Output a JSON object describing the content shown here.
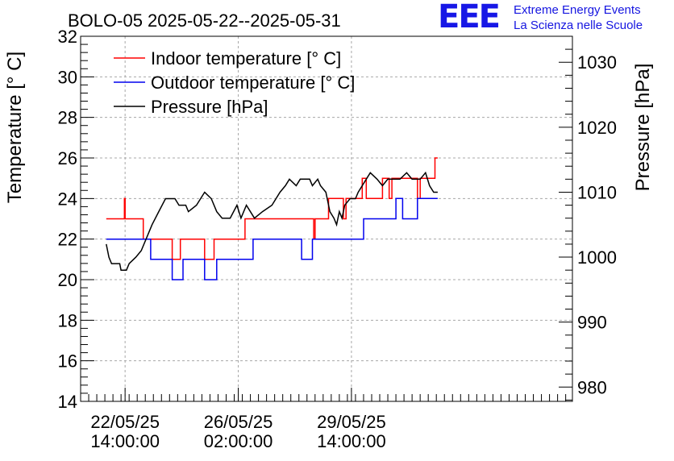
{
  "header": {
    "logo_text": "EEE",
    "org_line1": "Extreme Energy Events",
    "org_line2": "La Scienza nelle Scuole"
  },
  "chart_data": {
    "type": "line",
    "title": "BOLO-05 2025-05-22--2025-05-31",
    "xlabel": "",
    "ylabel": "Temperature [° C]",
    "y2label": "Pressure [hPa]",
    "ylim": [
      14,
      32
    ],
    "y2lim": [
      977.8,
      1034.0
    ],
    "xlim": [
      "2025-05-21 05:00",
      "2025-06-05 10:00"
    ],
    "x_ticks": [
      {
        "x": "2025-05-22 14:00",
        "label1": "22/05/25",
        "label2": "14:00:00"
      },
      {
        "x": "2025-05-26 02:00",
        "label1": "26/05/25",
        "label2": "02:00:00"
      },
      {
        "x": "2025-05-29 14:00",
        "label1": "29/05/25",
        "label2": "14:00:00"
      }
    ],
    "y_ticks": [
      14,
      16,
      18,
      20,
      22,
      24,
      26,
      28,
      30,
      32
    ],
    "y2_ticks": [
      980,
      990,
      1000,
      1010,
      1020,
      1030
    ],
    "grid": true,
    "legend_position": "top-left",
    "colors": {
      "indoor": "#ff0000",
      "outdoor": "#0000ee",
      "pressure": "#000000"
    },
    "series": [
      {
        "name": "Indoor temperature [° C]",
        "axis": "left",
        "step": true,
        "points": [
          [
            "2025-05-22 00:00",
            23
          ],
          [
            "2025-05-22 13:00",
            23
          ],
          [
            "2025-05-22 13:30",
            24
          ],
          [
            "2025-05-22 14:00",
            23
          ],
          [
            "2025-05-23 03:00",
            23
          ],
          [
            "2025-05-23 03:30",
            22
          ],
          [
            "2025-05-23 14:00",
            22
          ],
          [
            "2025-05-24 01:00",
            21
          ],
          [
            "2025-05-24 07:00",
            22
          ],
          [
            "2025-05-25 01:00",
            21
          ],
          [
            "2025-05-25 08:00",
            22
          ],
          [
            "2025-05-26 07:00",
            23
          ],
          [
            "2025-05-28 10:00",
            22
          ],
          [
            "2025-05-28 11:00",
            23
          ],
          [
            "2025-05-28 21:00",
            24
          ],
          [
            "2025-05-29 08:00",
            23
          ],
          [
            "2025-05-29 10:00",
            24
          ],
          [
            "2025-05-29 22:00",
            25
          ],
          [
            "2025-05-30 01:00",
            24
          ],
          [
            "2025-05-30 13:00",
            25
          ],
          [
            "2025-05-30 18:00",
            24
          ],
          [
            "2025-05-30 20:00",
            25
          ],
          [
            "2025-05-31 15:00",
            24
          ],
          [
            "2025-05-31 17:00",
            25
          ],
          [
            "2025-06-01 04:00",
            26
          ],
          [
            "2025-06-01 06:00",
            26
          ]
        ]
      },
      {
        "name": "Outdoor temperature [° C]",
        "axis": "left",
        "step": true,
        "points": [
          [
            "2025-05-22 00:00",
            22
          ],
          [
            "2025-05-23 09:00",
            21
          ],
          [
            "2025-05-24 01:00",
            20
          ],
          [
            "2025-05-24 09:00",
            21
          ],
          [
            "2025-05-25 01:00",
            20
          ],
          [
            "2025-05-25 10:00",
            21
          ],
          [
            "2025-05-26 13:00",
            22
          ],
          [
            "2025-05-28 01:00",
            21
          ],
          [
            "2025-05-28 09:00",
            22
          ],
          [
            "2025-05-29 23:00",
            23
          ],
          [
            "2025-05-30 23:00",
            24
          ],
          [
            "2025-05-31 04:00",
            23
          ],
          [
            "2025-05-31 15:00",
            24
          ],
          [
            "2025-06-01 06:00",
            24
          ]
        ]
      },
      {
        "name": "Pressure [hPa]",
        "axis": "right",
        "step": false,
        "points": [
          [
            "2025-05-22 00:00",
            1002
          ],
          [
            "2025-05-22 02:00",
            1000
          ],
          [
            "2025-05-22 04:00",
            999
          ],
          [
            "2025-05-22 10:00",
            999
          ],
          [
            "2025-05-22 11:00",
            998
          ],
          [
            "2025-05-22 15:00",
            998
          ],
          [
            "2025-05-22 17:00",
            999
          ],
          [
            "2025-05-22 22:00",
            1000
          ],
          [
            "2025-05-23 02:00",
            1001
          ],
          [
            "2025-05-23 06:00",
            1003
          ],
          [
            "2025-05-23 10:00",
            1005
          ],
          [
            "2025-05-23 15:00",
            1007
          ],
          [
            "2025-05-23 20:00",
            1009
          ],
          [
            "2025-05-24 03:00",
            1009
          ],
          [
            "2025-05-24 06:00",
            1008
          ],
          [
            "2025-05-24 11:00",
            1008
          ],
          [
            "2025-05-24 13:00",
            1007
          ],
          [
            "2025-05-24 19:00",
            1008
          ],
          [
            "2025-05-25 01:00",
            1010
          ],
          [
            "2025-05-25 06:00",
            1009
          ],
          [
            "2025-05-25 10:00",
            1007
          ],
          [
            "2025-05-25 14:00",
            1006
          ],
          [
            "2025-05-25 20:00",
            1006
          ],
          [
            "2025-05-26 01:00",
            1008
          ],
          [
            "2025-05-26 04:00",
            1006
          ],
          [
            "2025-05-26 08:00",
            1008
          ],
          [
            "2025-05-26 14:00",
            1006
          ],
          [
            "2025-05-26 20:00",
            1007
          ],
          [
            "2025-05-27 03:00",
            1008
          ],
          [
            "2025-05-27 09:00",
            1010
          ],
          [
            "2025-05-27 13:00",
            1011
          ],
          [
            "2025-05-27 16:00",
            1012
          ],
          [
            "2025-05-27 21:00",
            1011
          ],
          [
            "2025-05-28 00:00",
            1012
          ],
          [
            "2025-05-28 07:00",
            1012
          ],
          [
            "2025-05-28 09:00",
            1011
          ],
          [
            "2025-05-28 13:00",
            1012
          ],
          [
            "2025-05-28 15:00",
            1011
          ],
          [
            "2025-05-28 19:00",
            1010
          ],
          [
            "2025-05-28 22:00",
            1007
          ],
          [
            "2025-05-29 01:00",
            1006
          ],
          [
            "2025-05-29 03:00",
            1005
          ],
          [
            "2025-05-29 05:00",
            1007
          ],
          [
            "2025-05-29 07:00",
            1006
          ],
          [
            "2025-05-29 09:00",
            1008
          ],
          [
            "2025-05-29 13:00",
            1009
          ],
          [
            "2025-05-29 17:00",
            1009
          ],
          [
            "2025-05-29 19:00",
            1010
          ],
          [
            "2025-05-29 22:00",
            1011
          ],
          [
            "2025-05-30 01:00",
            1012
          ],
          [
            "2025-05-30 04:00",
            1013
          ],
          [
            "2025-05-30 09:00",
            1012
          ],
          [
            "2025-05-30 13:00",
            1011
          ],
          [
            "2025-05-30 17:00",
            1012
          ],
          [
            "2025-05-30 21:00",
            1012
          ],
          [
            "2025-05-31 02:00",
            1012
          ],
          [
            "2025-05-31 07:00",
            1013
          ],
          [
            "2025-05-31 11:00",
            1012
          ],
          [
            "2025-05-31 17:00",
            1012
          ],
          [
            "2025-05-31 21:00",
            1013
          ],
          [
            "2025-06-01 00:00",
            1011
          ],
          [
            "2025-06-01 03:00",
            1010
          ],
          [
            "2025-06-01 06:00",
            1010
          ]
        ]
      }
    ]
  }
}
